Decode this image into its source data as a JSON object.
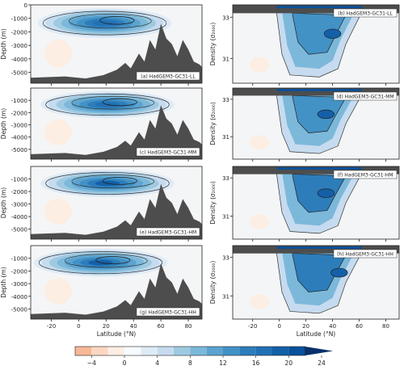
{
  "figure": {
    "depth_ylabel": "Depth (m)",
    "density_ylabel": "Density (σ₂₀₀₀)",
    "xlabel": "Latitude (°N)"
  },
  "chart_data": [
    {
      "type": "heatmap",
      "label": "(a) HadGEM3-GC31-LL",
      "ylabel": "Depth (m)",
      "xlabel": "",
      "xlim": [
        -35,
        90
      ],
      "ylim": [
        -5800,
        0
      ],
      "xticks": [],
      "yticks": [
        0,
        -1000,
        -2000,
        -3000,
        -4000,
        -5000
      ],
      "cell_max": {
        "lat": 33,
        "value": 18
      }
    },
    {
      "type": "heatmap",
      "label": "(b) HadGEM3-GC31-LL",
      "ylabel": "Density (σ₂₀₀₀)",
      "xlabel": "",
      "xlim": [
        -35,
        90
      ],
      "ylim": [
        29.8,
        33.6
      ],
      "xticks": [],
      "yticks": [
        31,
        33
      ],
      "cell_max": {
        "lat": 40,
        "value": 18
      }
    },
    {
      "type": "heatmap",
      "label": "(c) HadGEM3-GC31-MM",
      "ylabel": "Depth (m)",
      "xlabel": "",
      "xlim": [
        -35,
        90
      ],
      "ylim": [
        -5800,
        0
      ],
      "xticks": [],
      "yticks": [
        -1000,
        -2000,
        -3000,
        -4000,
        -5000
      ],
      "cell_max": {
        "lat": 35,
        "value": 18
      }
    },
    {
      "type": "heatmap",
      "label": "(d) HadGEM3-GC31-MM",
      "ylabel": "Density (σ₂₀₀₀)",
      "xlabel": "",
      "xlim": [
        -35,
        90
      ],
      "ylim": [
        29.8,
        33.6
      ],
      "xticks": [],
      "yticks": [
        31,
        33
      ],
      "cell_max": {
        "lat": 35,
        "value": 18
      }
    },
    {
      "type": "heatmap",
      "label": "(e) HadGEM3-GC31-HM",
      "ylabel": "Depth (m)",
      "xlabel": "",
      "xlim": [
        -35,
        90
      ],
      "ylim": [
        -5800,
        0
      ],
      "xticks": [],
      "yticks": [
        -1000,
        -2000,
        -3000,
        -4000,
        -5000
      ],
      "cell_max": {
        "lat": 35,
        "value": 20
      }
    },
    {
      "type": "heatmap",
      "label": "(f) HadGEM3-GC31-HM",
      "ylabel": "Density (σ₂₀₀₀)",
      "xlabel": "",
      "xlim": [
        -35,
        90
      ],
      "ylim": [
        29.8,
        33.6
      ],
      "xticks": [],
      "yticks": [
        31,
        33
      ],
      "cell_max": {
        "lat": 35,
        "value": 20
      }
    },
    {
      "type": "heatmap",
      "label": "(g) HadGEM3-GC31-HH",
      "ylabel": "Depth (m)",
      "xlabel": "Latitude (°N)",
      "xlim": [
        -35,
        90
      ],
      "ylim": [
        -5800,
        0
      ],
      "xticks": [
        -20,
        0,
        20,
        40,
        60,
        80
      ],
      "yticks": [
        -1000,
        -2000,
        -3000,
        -4000,
        -5000
      ],
      "cell_max": {
        "lat": 30,
        "value": 22
      }
    },
    {
      "type": "heatmap",
      "label": "(h) HadGEM3-GC31-HH",
      "ylabel": "Density (σ₂₀₀₀)",
      "xlabel": "Latitude (°N)",
      "xlim": [
        -35,
        90
      ],
      "ylim": [
        29.8,
        33.6
      ],
      "xticks": [
        -20,
        0,
        20,
        40,
        60,
        80
      ],
      "yticks": [
        31,
        33
      ],
      "cell_max": {
        "lat": 45,
        "value": 22
      }
    }
  ],
  "colorbar": {
    "ticks": [
      -4,
      0,
      4,
      8,
      12,
      16,
      20,
      24
    ],
    "levels": [
      -6,
      -4,
      -2,
      0,
      2,
      4,
      6,
      8,
      10,
      12,
      14,
      16,
      18,
      20,
      22,
      24
    ],
    "colors": [
      "#f7b897",
      "#fbd7c2",
      "#fdeee3",
      "#f7fbff",
      "#deebf7",
      "#c6dbef",
      "#9ecae1",
      "#7cb8da",
      "#5ba3d0",
      "#4292c6",
      "#2d7dbb",
      "#2171b5",
      "#1460a8",
      "#08519c",
      "#08306b"
    ]
  }
}
